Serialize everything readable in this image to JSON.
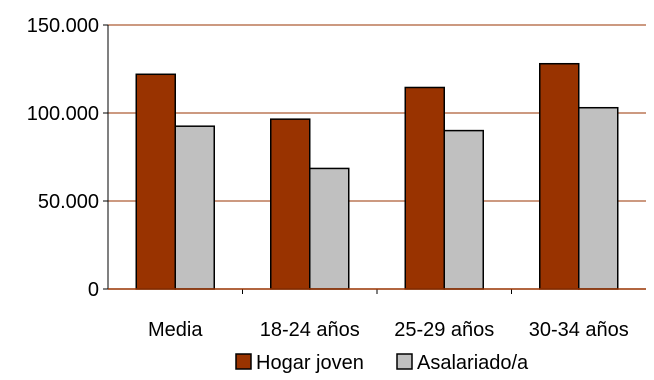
{
  "chart_data": {
    "type": "bar",
    "categories": [
      "Media",
      "18-24 años",
      "25-29 años",
      "30-34 años"
    ],
    "series": [
      {
        "name": "Hogar joven",
        "values": [
          122000,
          96500,
          114500,
          128000
        ],
        "color": "#993300"
      },
      {
        "name": "Asalariado/a",
        "values": [
          92500,
          68500,
          90000,
          103000
        ],
        "color": "#C0C0C0"
      }
    ],
    "ylim": [
      0,
      150000
    ],
    "y_ticks": [
      {
        "value": 0,
        "label": "0"
      },
      {
        "value": 50000,
        "label": "50.000"
      },
      {
        "value": 100000,
        "label": "100.000"
      },
      {
        "value": 150000,
        "label": "150.000"
      }
    ],
    "grid": true,
    "grid_color": "#993300",
    "legend_position": "bottom"
  }
}
